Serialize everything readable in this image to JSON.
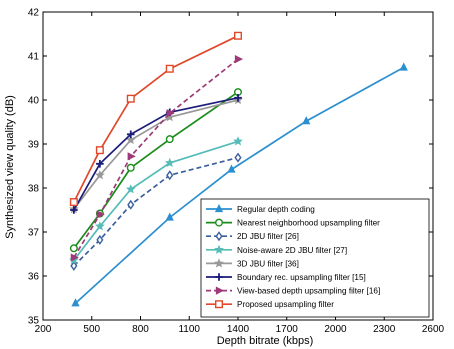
{
  "chart_data": {
    "type": "line",
    "xlabel": "Depth bitrate (kbps)",
    "ylabel": "Synthesized view quality (dB)",
    "xlim": [
      200,
      2600
    ],
    "ylim": [
      35,
      42
    ],
    "xticks": [
      200,
      500,
      800,
      1100,
      1400,
      1700,
      2000,
      2300,
      2600
    ],
    "yticks": [
      35,
      36,
      37,
      38,
      39,
      40,
      41,
      42
    ],
    "grid": false,
    "legend_position": "bottom-right",
    "series": [
      {
        "name": "Regular depth coding",
        "color": "#2b8fd0",
        "marker": "triangle",
        "dash": "solid",
        "x": [
          400,
          980,
          1360,
          1820,
          2420
        ],
        "y": [
          35.38,
          37.33,
          38.42,
          39.52,
          40.74
        ]
      },
      {
        "name": "Nearest neighborhood upsampling filter",
        "color": "#1a8c1a",
        "marker": "circle",
        "dash": "solid",
        "x": [
          390,
          550,
          740,
          980,
          1400
        ],
        "y": [
          36.63,
          37.42,
          38.46,
          39.11,
          40.18
        ]
      },
      {
        "name": "2D JBU filter [26]",
        "color": "#3b5f9c",
        "marker": "diamond",
        "dash": "dashed",
        "x": [
          390,
          550,
          740,
          980,
          1400
        ],
        "y": [
          36.23,
          36.82,
          37.62,
          38.29,
          38.69
        ]
      },
      {
        "name": "Noise-aware 2D JBU filter [27]",
        "color": "#55bcb8",
        "marker": "star",
        "dash": "solid",
        "x": [
          390,
          550,
          740,
          980,
          1400
        ],
        "y": [
          36.36,
          37.13,
          37.97,
          38.57,
          39.06
        ]
      },
      {
        "name": "3D JBU filter [36]",
        "color": "#999999",
        "marker": "star",
        "dash": "solid",
        "x": [
          390,
          550,
          740,
          980,
          1400
        ],
        "y": [
          37.52,
          38.29,
          39.09,
          39.61,
          40.0
        ]
      },
      {
        "name": "Boundary rec. upsampling filter [15]",
        "color": "#1c1c7a",
        "marker": "plus",
        "dash": "solid",
        "x": [
          390,
          550,
          740,
          980,
          1400
        ],
        "y": [
          37.5,
          38.55,
          39.22,
          39.72,
          40.05
        ]
      },
      {
        "name": "View-based depth upsampling filter [16]",
        "color": "#9e3a78",
        "marker": "triangle-right",
        "dash": "dashed",
        "x": [
          390,
          550,
          740,
          980,
          1400
        ],
        "y": [
          36.42,
          37.4,
          38.72,
          39.7,
          40.93
        ]
      },
      {
        "name": "Proposed upsampling filter",
        "color": "#e0482a",
        "marker": "square",
        "dash": "solid",
        "x": [
          390,
          550,
          740,
          980,
          1400
        ],
        "y": [
          37.68,
          38.86,
          40.03,
          40.71,
          41.46
        ]
      }
    ]
  }
}
